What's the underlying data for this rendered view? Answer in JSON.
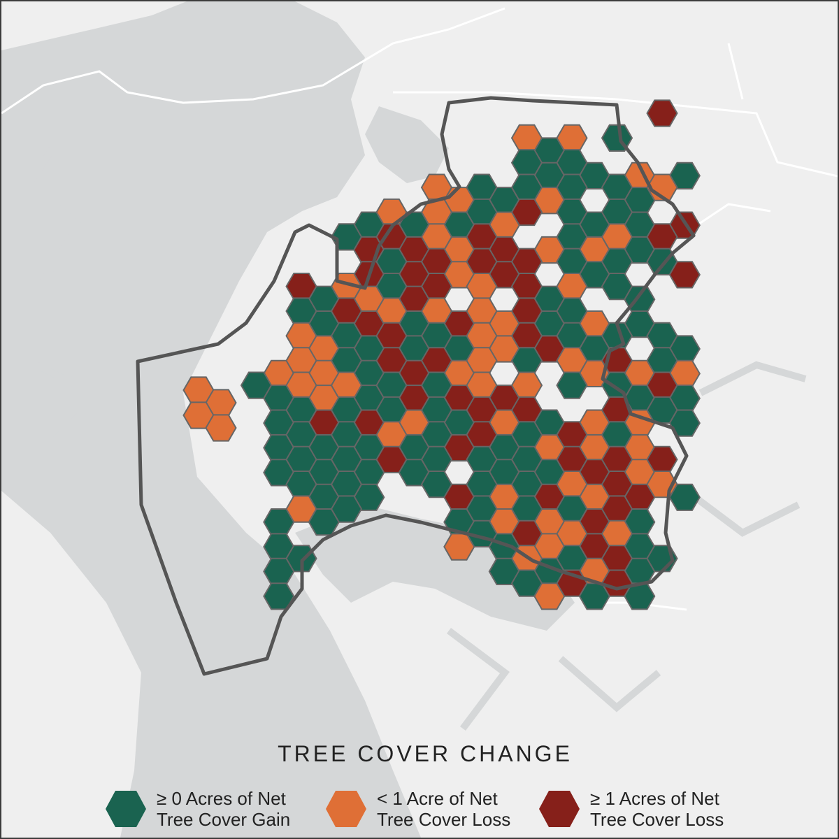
{
  "map": {
    "legend_title": "TREE COVER CHANGE",
    "legend": [
      {
        "id": "gain",
        "line1": "≥ 0 Acres of Net",
        "line2": "Tree Cover Gain",
        "color": "#1a6350"
      },
      {
        "id": "small-loss",
        "line1": "< 1 Acre of Net",
        "line2": "Tree Cover Loss",
        "color": "#df6f36"
      },
      {
        "id": "large-loss",
        "line1": "≥ 1 Acres of Net",
        "line2": "Tree Cover Loss",
        "color": "#86201a"
      }
    ],
    "colors": {
      "water": "#d5d7d8",
      "land": "#efefef",
      "boundary": "#555555",
      "hex_stroke": "#666666"
    },
    "hexes": [
      "....................c......",
      "..............bab.a.......",
      "..............aaaa.b.a...",
      "..........bbaaaba.aab.b...",
      ".......ababaabc.aaaa.c...",
      "......acccbbcc.babbac....",
      ".......caccbccc.aaa.ac...",
      "....cabbacc.b.cab.aa.....",
      "....aaccbabcbbcaab.a..ba",
      "....bbaacaaabbccaaa.aa....",
      "...bbbaacccbb.a.bbcbab....",
      "..aabbbaacacbcb.a.aaca....",
      "...aacacabaacbca.bcbaa....",
      "...aaaaabaaccaabcbab......",
      "...aaaaacaa.aaaacccbc.....",
      "....aaaa..acabacbbccba....",
      "...abaa....aababacca.....",
      "...a.......baacbbcba.....",
      "...aa........abaabcaa....",
      "...a..........abcaca.....",
      "...............aab.caab...",
      "................ab.aca....",
      "..................ab......"
    ]
  }
}
